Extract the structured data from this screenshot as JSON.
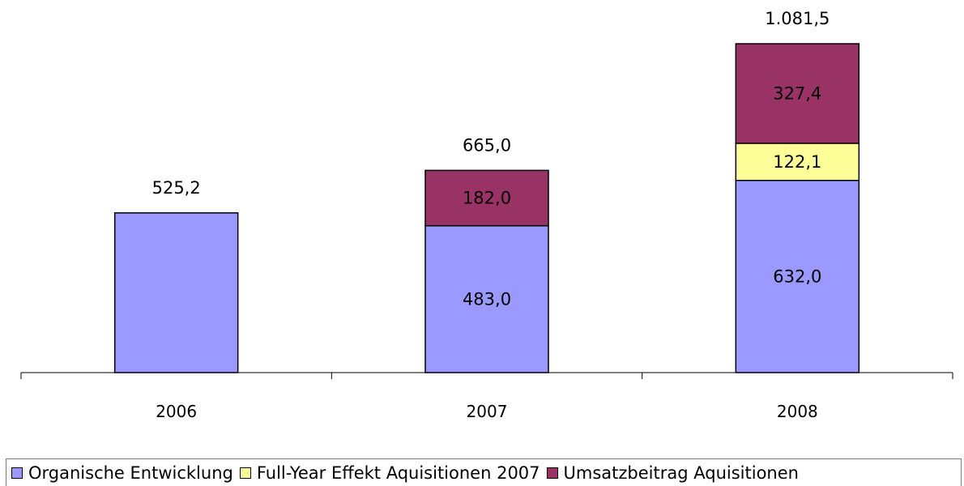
{
  "chart_data": {
    "type": "bar",
    "stacked": true,
    "categories": [
      "2006",
      "2007",
      "2008"
    ],
    "series": [
      {
        "name": "Organische Entwicklung",
        "color": "#9999ff",
        "values": [
          525.2,
          483.0,
          632.0
        ],
        "labels": [
          "",
          "483,0",
          "632,0"
        ]
      },
      {
        "name": "Full-Year Effekt Aquisitionen 2007",
        "color": "#ffff99",
        "values": [
          0,
          0,
          122.1
        ],
        "labels": [
          "",
          "",
          "122,1"
        ]
      },
      {
        "name": "Umsatzbeitrag Aquisitionen",
        "color": "#993366",
        "values": [
          0,
          182.0,
          327.4
        ],
        "labels": [
          "",
          "182,0",
          "327,4"
        ]
      }
    ],
    "totals": [
      525.2,
      665.0,
      1081.5
    ],
    "total_labels": [
      "525,2",
      "665,0",
      "1.081,5"
    ],
    "ylim": [
      0,
      1081.5
    ],
    "grid": false,
    "legend": "bottom"
  }
}
